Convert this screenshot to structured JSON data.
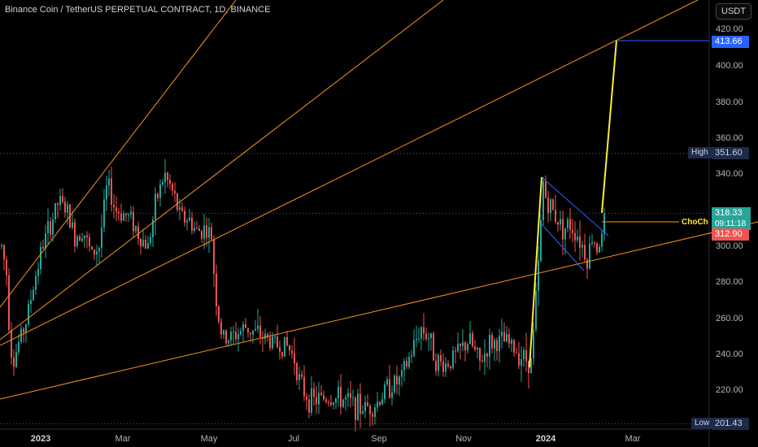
{
  "header": {
    "title": "Binance Coin / TetherUS PERPETUAL CONTRACT, 1D, BINANCE",
    "currency_button": "USDT"
  },
  "price_axis": {
    "ticks": [
      "420.00",
      "400.00",
      "380.00",
      "360.00",
      "340.00",
      "300.00",
      "280.00",
      "260.00",
      "240.00",
      "220.00"
    ]
  },
  "time_axis": {
    "ticks": [
      "2023",
      "Mar",
      "May",
      "Jul",
      "Sep",
      "Nov",
      "2024",
      "Mar"
    ]
  },
  "badges": {
    "target": "413.66",
    "high_label": "High",
    "high_value": "351.60",
    "current_price": "318.33",
    "countdown": "09:11:18",
    "prev_close": "312.90",
    "low_label": "Low",
    "low_value": "201.43"
  },
  "annotations": {
    "choch": "ChoCh"
  },
  "colors": {
    "up": "#26a69a",
    "down": "#ef5350",
    "trendline": "#f7931a",
    "projection": "#ffeb3b",
    "channel": "#2962ff",
    "target_badge": "#2962ff"
  },
  "chart_data": {
    "type": "candlestick",
    "symbol": "BNBUSDT.P",
    "interval": "1D",
    "y_range": [
      201,
      425
    ],
    "high": 351.6,
    "low": 201.43,
    "last": 318.33,
    "target": 413.66
  }
}
